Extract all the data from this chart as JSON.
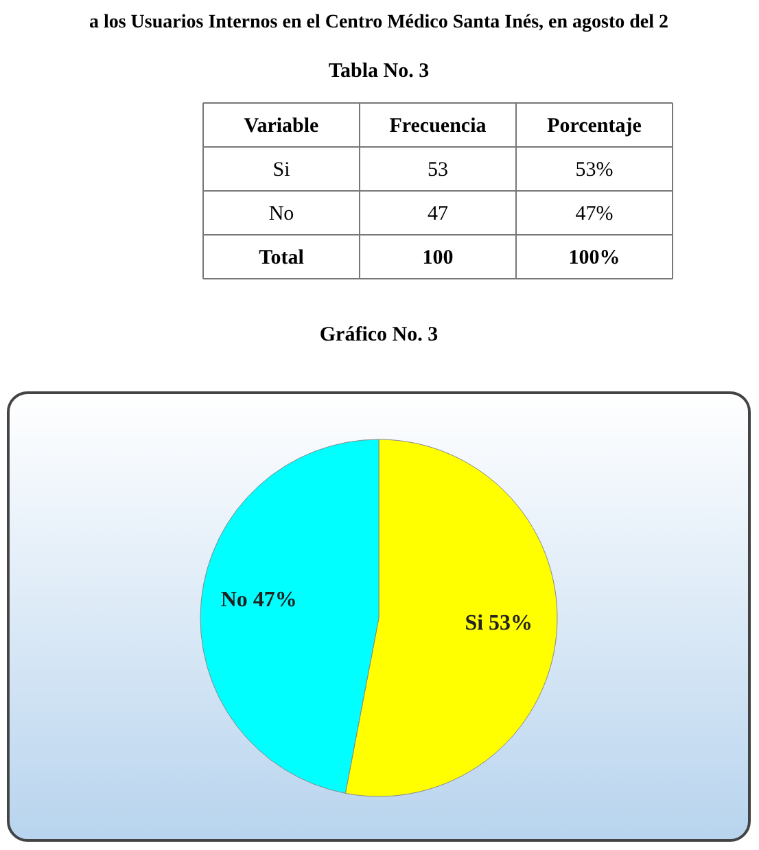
{
  "chart_data": [
    {
      "type": "other",
      "title": "a los Usuarios Internos en el Centro Médico Santa Inés, en agosto del 2",
      "subtitle": "Tabla No. 3",
      "annotations": [
        "Variable",
        "Frecuencia",
        "Porcentaje",
        "Si",
        "53",
        "53%",
        "No",
        "47",
        "47%",
        "Total",
        "100",
        "100%"
      ]
    },
    {
      "type": "pie",
      "title": "Gráfico No. 3",
      "categories": [
        "Si",
        "No"
      ],
      "values": [
        53,
        47
      ],
      "colors": [
        "#ffff00",
        "#00ffff"
      ],
      "value_labels": [
        "53%",
        "47%"
      ],
      "data_labels": true
    }
  ]
}
